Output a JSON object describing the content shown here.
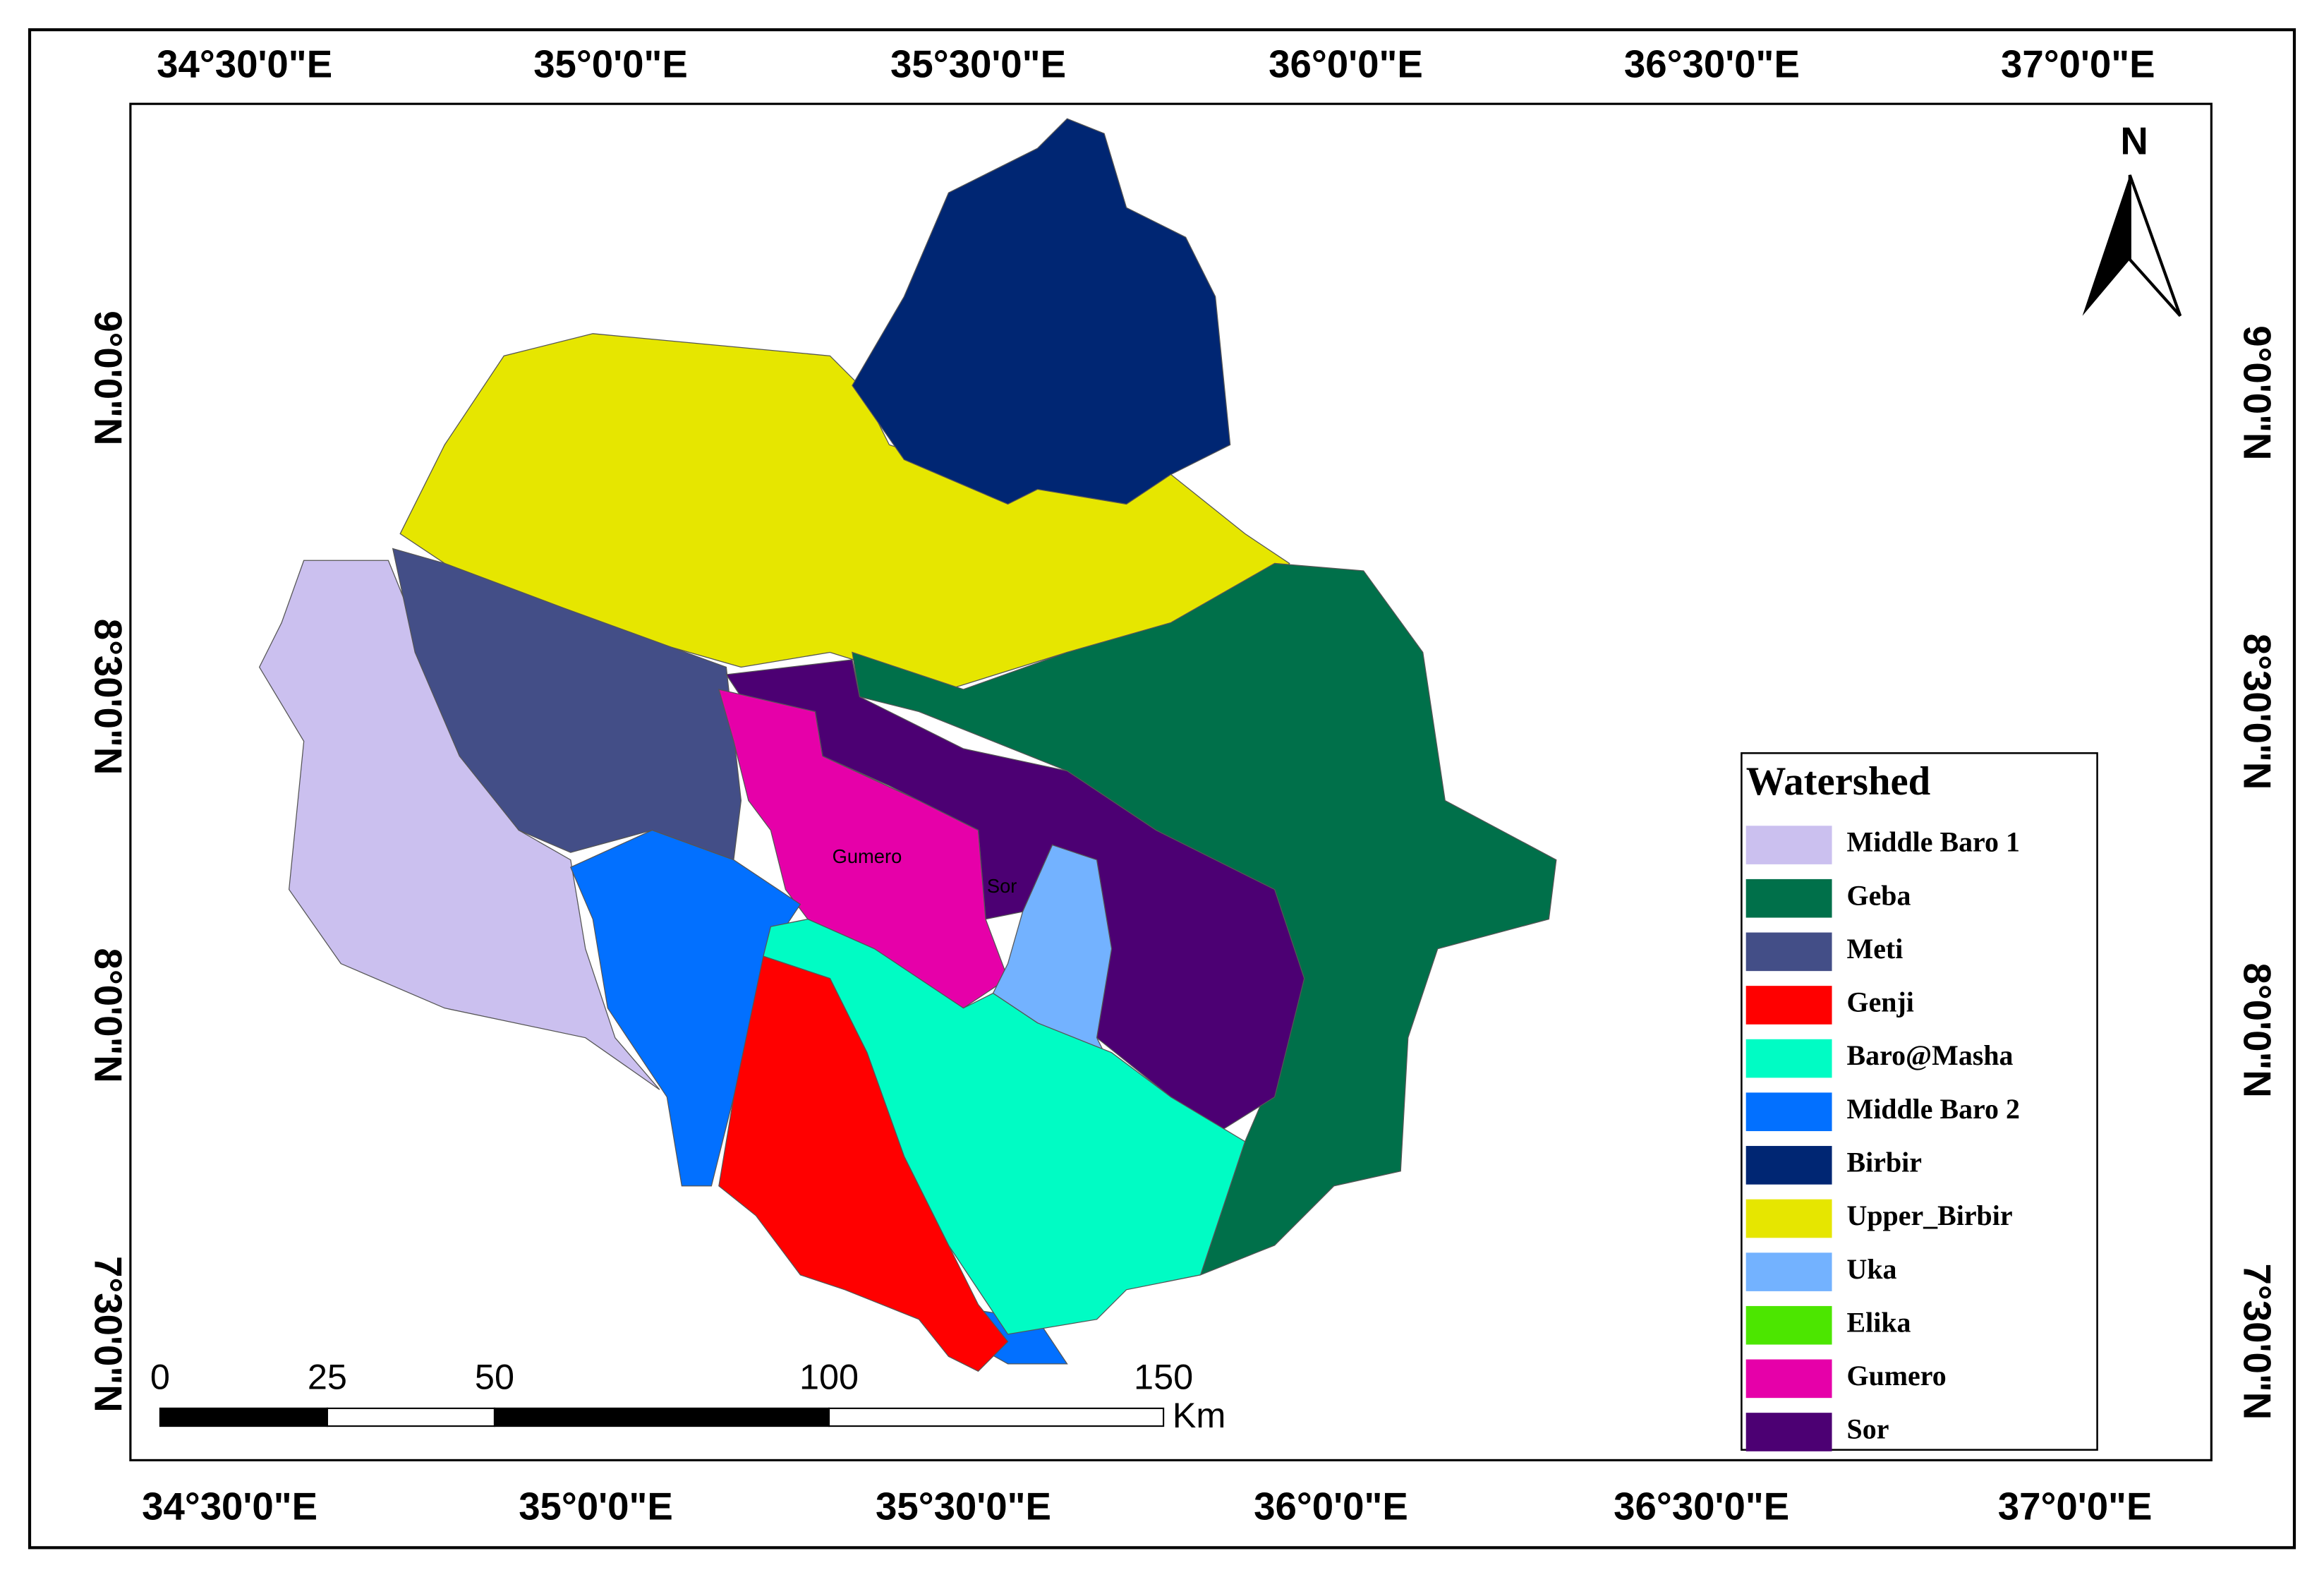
{
  "map": {
    "top_labels": [
      "34°30'0\"E",
      "35°0'0\"E",
      "35°30'0\"E",
      "36°0'0\"E",
      "36°30'0\"E",
      "37°0'0\"E"
    ],
    "bottom_labels": [
      "34°30'0\"E",
      "35°0'0\"E",
      "35°30'0\"E",
      "36°0'0\"E",
      "36°30'0\"E",
      "37°0'0\"E"
    ],
    "left_labels": [
      "9°0'0\"N",
      "8°30'0\"N",
      "8°0'0\"N",
      "7°30'0\"N"
    ],
    "right_labels": [
      "9°0'0\"N",
      "8°30'0\"N",
      "8°0'0\"N",
      "7°30'0\"N"
    ],
    "north": "N",
    "region_labels": [
      "Gumero",
      "Sor"
    ],
    "scale_bar": {
      "ticks": [
        0,
        25,
        50,
        100,
        150
      ],
      "unit": "Km"
    },
    "legend": {
      "title": "Watershed",
      "entries": [
        {
          "name": "Middle Baro 1",
          "color": "#cbc0ef"
        },
        {
          "name": "Geba",
          "color": "#00704a"
        },
        {
          "name": "Meti",
          "color": "#434e87"
        },
        {
          "name": "Genji",
          "color": "#ff0000"
        },
        {
          "name": "Baro@Masha",
          "color": "#00fcc4"
        },
        {
          "name": "Middle Baro 2",
          "color": "#0270ff"
        },
        {
          "name": "Birbir",
          "color": "#002673"
        },
        {
          "name": "Upper_Birbir",
          "color": "#e6e600"
        },
        {
          "name": "Uka",
          "color": "#73b2ff"
        },
        {
          "name": "Elika",
          "color": "#4ce600"
        },
        {
          "name": "Gumero",
          "color": "#e600a9"
        },
        {
          "name": "Sor",
          "color": "#4c0073"
        }
      ]
    }
  }
}
